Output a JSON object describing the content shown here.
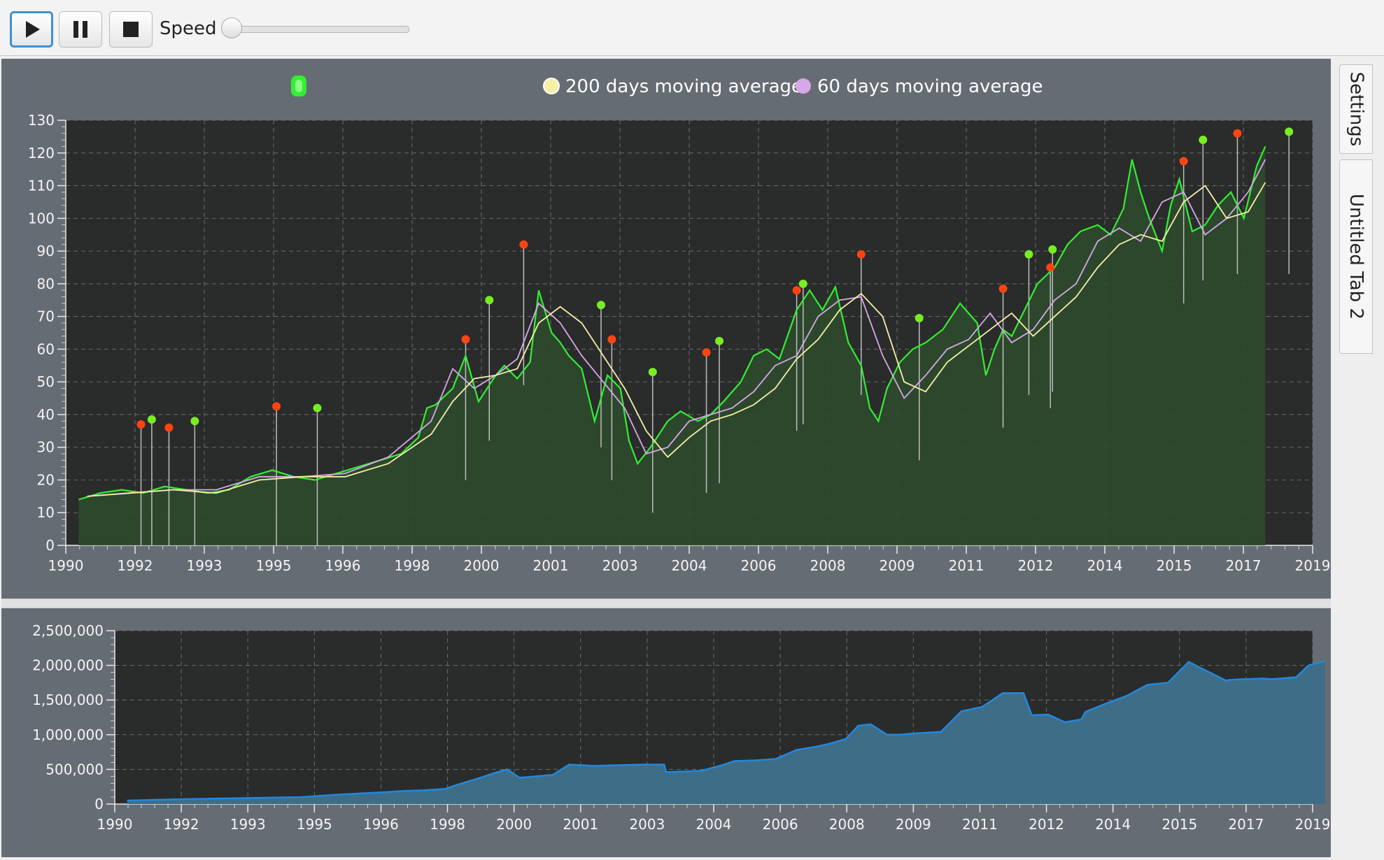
{
  "toolbar": {
    "play_icon": "play-icon",
    "pause_icon": "pause-icon",
    "stop_icon": "stop-icon",
    "speed_label": "Speed",
    "speed_value": 0
  },
  "tabs": [
    "Settings",
    "Untitled Tab 2"
  ],
  "colors": {
    "price_line": "#33ee33",
    "price_fill": "#2e4a2e",
    "ma200": "#f4f0a8",
    "ma60": "#d7a8e8",
    "buy_marker": "#77ee22",
    "sell_marker": "#ff4411",
    "equity_line": "#2288dd",
    "equity_fill": "#3e6d88",
    "plot_bg": "#2a2b2b",
    "pane_bg": "#666c73"
  },
  "chart_data": [
    {
      "type": "line",
      "legend": {
        "placement": "top",
        "entries": [
          "",
          "200 days moving average",
          "60 days moving average"
        ]
      },
      "x_tick_labels": [
        "1990",
        "1992",
        "1993",
        "1995",
        "1996",
        "1998",
        "2000",
        "2001",
        "2003",
        "2004",
        "2006",
        "2008",
        "2009",
        "2011",
        "2012",
        "2014",
        "2015",
        "2017",
        "2019"
      ],
      "y_tick_labels": [
        "0",
        "10",
        "20",
        "30",
        "40",
        "50",
        "60",
        "70",
        "80",
        "90",
        "100",
        "110",
        "120",
        "130"
      ],
      "xlim": [
        1990.0,
        2019.0
      ],
      "ylim": [
        0,
        130
      ],
      "grid": true,
      "series": [
        {
          "name": "",
          "x": [
            1990.3,
            1990.8,
            1991.3,
            1991.8,
            1992.3,
            1992.8,
            1993.3,
            1993.8,
            1994.3,
            1994.8,
            1995.3,
            1995.8,
            1996.3,
            1996.8,
            1997.3,
            1997.8,
            1998.2,
            1998.4,
            1998.6,
            1999.0,
            1999.3,
            1999.6,
            2000.0,
            2000.2,
            2000.5,
            2000.8,
            2001.0,
            2001.3,
            2001.5,
            2001.7,
            2002.0,
            2002.3,
            2002.6,
            2002.9,
            2003.1,
            2003.3,
            2003.6,
            2004.0,
            2004.3,
            2004.7,
            2005.0,
            2005.3,
            2005.7,
            2006.0,
            2006.3,
            2006.6,
            2007.0,
            2007.3,
            2007.6,
            2007.9,
            2008.2,
            2008.5,
            2008.7,
            2008.9,
            2009.1,
            2009.4,
            2009.7,
            2010.0,
            2010.4,
            2010.8,
            2011.2,
            2011.4,
            2011.6,
            2011.8,
            2012.0,
            2012.3,
            2012.6,
            2013.0,
            2013.3,
            2013.6,
            2014.0,
            2014.3,
            2014.6,
            2014.8,
            2015.0,
            2015.2,
            2015.5,
            2015.7,
            2015.9,
            2016.2,
            2016.5,
            2016.8,
            2017.1,
            2017.4,
            2017.7,
            2017.9
          ],
          "y": [
            14,
            16,
            17,
            16,
            18,
            17,
            16,
            17,
            21,
            23,
            21,
            20,
            22,
            24,
            26,
            28,
            33,
            42,
            43,
            48,
            58,
            44,
            52,
            55,
            51,
            56,
            78,
            65,
            62,
            58,
            54,
            38,
            52,
            48,
            32,
            25,
            30,
            38,
            41,
            38,
            40,
            44,
            50,
            58,
            60,
            57,
            72,
            78,
            72,
            79,
            62,
            55,
            42,
            38,
            48,
            56,
            60,
            62,
            66,
            74,
            68,
            52,
            60,
            66,
            64,
            72,
            80,
            85,
            92,
            96,
            98,
            95,
            103,
            118,
            108,
            100,
            90,
            104,
            112,
            96,
            98,
            104,
            108,
            100,
            116,
            122
          ]
        },
        {
          "name": "200 days moving average",
          "x": [
            1990.5,
            1991.5,
            1992.5,
            1993.5,
            1994.5,
            1995.5,
            1996.5,
            1997.5,
            1998.5,
            1999.0,
            1999.5,
            2000.0,
            2000.5,
            2001.0,
            2001.5,
            2002.0,
            2002.5,
            2003.0,
            2003.5,
            2004.0,
            2004.5,
            2005.0,
            2005.5,
            2006.0,
            2006.5,
            2007.0,
            2007.5,
            2008.0,
            2008.5,
            2009.0,
            2009.5,
            2010.0,
            2010.5,
            2011.0,
            2011.5,
            2012.0,
            2012.5,
            2013.0,
            2013.5,
            2014.0,
            2014.5,
            2015.0,
            2015.5,
            2016.0,
            2016.5,
            2017.0,
            2017.5,
            2017.9
          ],
          "y": [
            15,
            16,
            17,
            16,
            20,
            21,
            21,
            25,
            34,
            44,
            51,
            52,
            54,
            68,
            73,
            68,
            58,
            48,
            35,
            27,
            33,
            38,
            40,
            43,
            48,
            57,
            63,
            72,
            77,
            70,
            50,
            47,
            56,
            61,
            66,
            71,
            64,
            70,
            76,
            85,
            92,
            95,
            93,
            105,
            110,
            100,
            102,
            111
          ]
        },
        {
          "name": "60 days moving average",
          "x": [
            1990.5,
            1991.5,
            1992.5,
            1993.5,
            1994.5,
            1995.5,
            1996.5,
            1997.5,
            1998.5,
            1999.0,
            1999.5,
            2000.0,
            2000.5,
            2001.0,
            2001.5,
            2002.0,
            2002.5,
            2003.0,
            2003.5,
            2004.0,
            2004.5,
            2005.0,
            2005.5,
            2006.0,
            2006.5,
            2007.0,
            2007.5,
            2008.0,
            2008.5,
            2009.0,
            2009.5,
            2010.0,
            2010.5,
            2011.0,
            2011.5,
            2012.0,
            2012.5,
            2013.0,
            2013.5,
            2014.0,
            2014.5,
            2015.0,
            2015.5,
            2016.0,
            2016.5,
            2017.0,
            2017.5,
            2017.9
          ],
          "y": [
            15,
            16,
            17,
            17,
            21,
            21,
            22,
            27,
            38,
            54,
            48,
            52,
            57,
            74,
            68,
            58,
            50,
            42,
            28,
            30,
            38,
            40,
            42,
            47,
            55,
            58,
            70,
            75,
            76,
            58,
            45,
            52,
            60,
            63,
            71,
            62,
            66,
            75,
            80,
            93,
            97,
            93,
            105,
            108,
            95,
            100,
            108,
            118
          ]
        }
      ],
      "signals": [
        {
          "x": 1991.75,
          "y": 37,
          "low": 0,
          "kind": "sell"
        },
        {
          "x": 1992.0,
          "y": 38.5,
          "low": 0,
          "kind": "buy"
        },
        {
          "x": 1992.4,
          "y": 36,
          "low": 0,
          "kind": "sell"
        },
        {
          "x": 1993.0,
          "y": 38,
          "low": 0,
          "kind": "buy"
        },
        {
          "x": 1994.9,
          "y": 42.5,
          "low": 0,
          "kind": "sell"
        },
        {
          "x": 1995.85,
          "y": 42,
          "low": 0,
          "kind": "buy"
        },
        {
          "x": 1999.3,
          "y": 63,
          "low": 20,
          "kind": "sell"
        },
        {
          "x": 1999.85,
          "y": 75,
          "low": 32,
          "kind": "buy"
        },
        {
          "x": 2000.65,
          "y": 92,
          "low": 49,
          "kind": "sell"
        },
        {
          "x": 2002.45,
          "y": 73.5,
          "low": 30,
          "kind": "buy"
        },
        {
          "x": 2002.7,
          "y": 63,
          "low": 20,
          "kind": "sell"
        },
        {
          "x": 2003.65,
          "y": 53,
          "low": 10,
          "kind": "buy"
        },
        {
          "x": 2004.9,
          "y": 59,
          "low": 16,
          "kind": "sell"
        },
        {
          "x": 2005.2,
          "y": 62.5,
          "low": 19,
          "kind": "buy"
        },
        {
          "x": 2007.0,
          "y": 78,
          "low": 35,
          "kind": "sell"
        },
        {
          "x": 2007.15,
          "y": 80,
          "low": 37,
          "kind": "buy"
        },
        {
          "x": 2008.5,
          "y": 89,
          "low": 46,
          "kind": "sell"
        },
        {
          "x": 2009.85,
          "y": 69.5,
          "low": 26,
          "kind": "buy"
        },
        {
          "x": 2011.8,
          "y": 78.5,
          "low": 36,
          "kind": "sell"
        },
        {
          "x": 2012.4,
          "y": 89,
          "low": 46,
          "kind": "buy"
        },
        {
          "x": 2012.9,
          "y": 85,
          "low": 42,
          "kind": "sell"
        },
        {
          "x": 2012.95,
          "y": 90.5,
          "low": 47,
          "kind": "buy"
        },
        {
          "x": 2016.0,
          "y": 117.5,
          "low": 74,
          "kind": "sell"
        },
        {
          "x": 2016.45,
          "y": 124,
          "low": 81,
          "kind": "buy"
        },
        {
          "x": 2017.25,
          "y": 126,
          "low": 83,
          "kind": "sell"
        },
        {
          "x": 2018.45,
          "y": 126.5,
          "low": 83,
          "kind": "buy"
        }
      ]
    },
    {
      "type": "area",
      "x_tick_labels": [
        "1990",
        "1992",
        "1993",
        "1995",
        "1996",
        "1998",
        "2000",
        "2001",
        "2003",
        "2004",
        "2006",
        "2008",
        "2009",
        "2011",
        "2012",
        "2014",
        "2015",
        "2017",
        "2019"
      ],
      "y_tick_labels": [
        "0",
        "500,000",
        "1,000,000",
        "1,500,000",
        "2,000,000",
        "2,500,000"
      ],
      "xlim": [
        1990.0,
        2019.0
      ],
      "ylim": [
        0,
        2500000
      ],
      "grid": true,
      "series": [
        {
          "name": "",
          "x": [
            1990.3,
            1991.5,
            1992.5,
            1993.5,
            1994.5,
            1995.5,
            1996.5,
            1997.0,
            1997.5,
            1998.0,
            1998.3,
            1998.8,
            1999.2,
            1999.5,
            1999.8,
            2000.2,
            2000.6,
            2001.0,
            2001.3,
            2001.6,
            2002.2,
            2002.8,
            2003.3,
            2003.35,
            2004.2,
            2004.7,
            2005.0,
            2005.5,
            2006.0,
            2006.5,
            2007.0,
            2007.3,
            2007.7,
            2008.0,
            2008.3,
            2008.7,
            2009.0,
            2009.4,
            2009.7,
            2010.0,
            2010.5,
            2011.0,
            2011.5,
            2012.0,
            2012.2,
            2012.6,
            2013.0,
            2013.4,
            2013.5,
            2014.0,
            2014.5,
            2015.0,
            2015.5,
            2016.0,
            2016.5,
            2016.9,
            2017.0,
            2017.3,
            2017.4,
            2017.8,
            2018.0,
            2018.6,
            2018.9,
            2019.3
          ],
          "y": [
            50000,
            70000,
            80000,
            90000,
            100000,
            140000,
            170000,
            190000,
            200000,
            220000,
            280000,
            370000,
            450000,
            500000,
            380000,
            400000,
            420000,
            570000,
            560000,
            550000,
            560000,
            570000,
            570000,
            460000,
            480000,
            560000,
            620000,
            630000,
            650000,
            780000,
            830000,
            870000,
            940000,
            1130000,
            1150000,
            1000000,
            1000000,
            1020000,
            1030000,
            1040000,
            1340000,
            1400000,
            1600000,
            1600000,
            1280000,
            1290000,
            1180000,
            1220000,
            1330000,
            1450000,
            1560000,
            1720000,
            1750000,
            2050000,
            1900000,
            1780000,
            1790000,
            1800000,
            1800000,
            1810000,
            1800000,
            1830000,
            2000000,
            2060000
          ]
        }
      ]
    }
  ]
}
